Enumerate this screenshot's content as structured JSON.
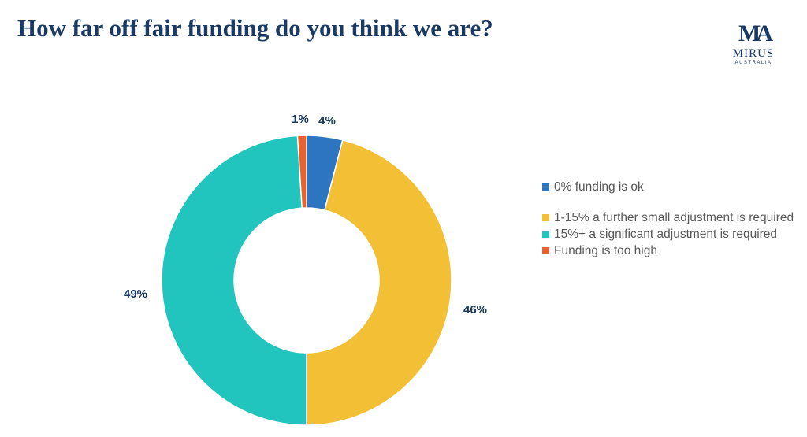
{
  "logo": {
    "mark": "MA",
    "name": "MIRUS",
    "sub": "AUSTRALIA"
  },
  "chart_data": {
    "type": "pie",
    "donut": true,
    "title": "How far off fair funding do you think we are?",
    "legend_position": "right",
    "slices": [
      {
        "label": "0% funding is ok",
        "value": 4,
        "display": "4%",
        "color": "#2e75c0"
      },
      {
        "label": "1-15% a further small adjustment is required",
        "value": 46,
        "display": "46%",
        "color": "#f3bf34"
      },
      {
        "label": "15%+ a significant adjustment is required",
        "value": 49,
        "display": "49%",
        "color": "#22c5bd"
      },
      {
        "label": "Funding is too high",
        "value": 1,
        "display": "1%",
        "color": "#e8622e"
      }
    ]
  }
}
